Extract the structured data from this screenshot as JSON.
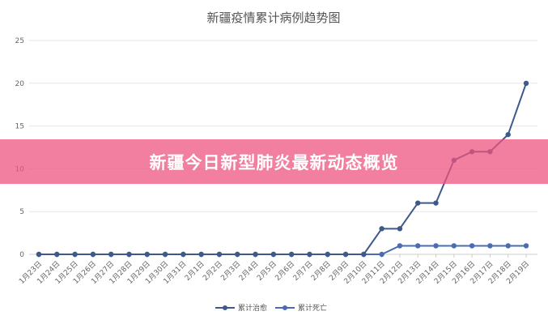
{
  "chart_data": {
    "type": "line",
    "title": "新疆疫情累计病例趋势图",
    "categories": [
      "1月23日",
      "1月24日",
      "1月25日",
      "1月26日",
      "1月27日",
      "1月28日",
      "1月29日",
      "1月30日",
      "1月31日",
      "2月1日",
      "2月2日",
      "2月3日",
      "2月4日",
      "2月5日",
      "2月6日",
      "2月7日",
      "2月8日",
      "2月9日",
      "2月10日",
      "2月11日",
      "2月12日",
      "2月13日",
      "2月14日",
      "2月15日",
      "2月16日",
      "2月17日",
      "2月18日",
      "2月19日"
    ],
    "series": [
      {
        "name": "累计治愈",
        "color": "#3d5a8a",
        "values": [
          0,
          0,
          0,
          0,
          0,
          0,
          0,
          0,
          0,
          0,
          0,
          0,
          0,
          0,
          0,
          0,
          0,
          0,
          0,
          3,
          3,
          6,
          6,
          11,
          12,
          12,
          14,
          20
        ]
      },
      {
        "name": "累计死亡",
        "color": "#4a6cb3",
        "values": [
          0,
          0,
          0,
          0,
          0,
          0,
          0,
          0,
          0,
          0,
          0,
          0,
          0,
          0,
          0,
          0,
          0,
          0,
          0,
          0,
          1,
          1,
          1,
          1,
          1,
          1,
          1,
          1
        ]
      }
    ],
    "yticks": [
      0,
      5,
      10,
      15,
      20,
      25
    ],
    "ylim": [
      0,
      25
    ],
    "xlabel": "",
    "ylabel": "",
    "grid": true,
    "legend_position": "bottom-center"
  },
  "banner": {
    "text": "新疆今日新型肺炎最新动态概览",
    "color": "#ee547f"
  }
}
